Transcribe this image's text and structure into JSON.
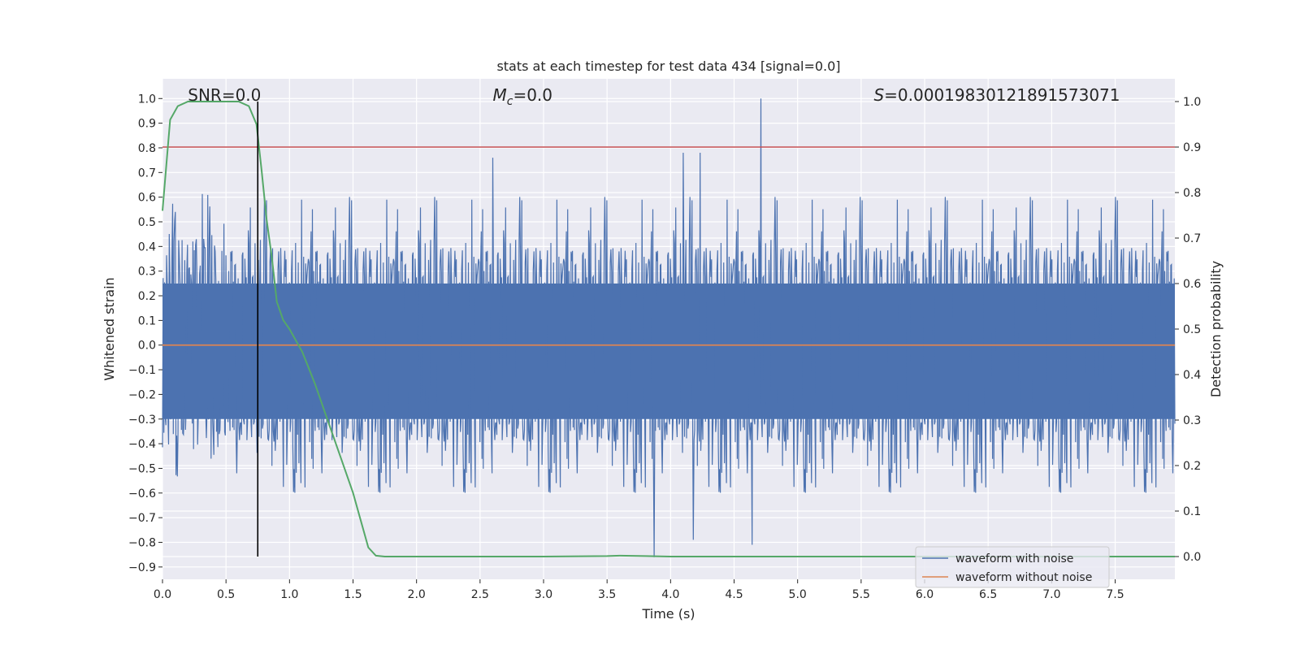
{
  "chart_data": {
    "type": "line",
    "title": "stats at each timestep for test data 434 [signal=0.0]",
    "xlabel": "Time (s)",
    "ylabel_left": "Whitened strain",
    "ylabel_right": "Detection probability",
    "xlim": [
      0.0,
      7.97
    ],
    "ylim_left": [
      -0.95,
      1.08
    ],
    "ylim_right": [
      -0.05,
      1.05
    ],
    "x_ticks": [
      0.0,
      0.5,
      1.0,
      1.5,
      2.0,
      2.5,
      3.0,
      3.5,
      4.0,
      4.5,
      5.0,
      5.5,
      6.0,
      6.5,
      7.0,
      7.5
    ],
    "x_tick_labels": [
      "0.0",
      "0.5",
      "1.0",
      "1.5",
      "2.0",
      "2.5",
      "3.0",
      "3.5",
      "4.0",
      "4.5",
      "5.0",
      "5.5",
      "6.0",
      "6.5",
      "7.0",
      "7.5"
    ],
    "y_left_ticks": [
      1.0,
      0.9,
      0.8,
      0.7,
      0.6,
      0.5,
      0.4,
      0.3,
      0.2,
      0.1,
      0.0,
      -0.1,
      -0.2,
      -0.3,
      -0.4,
      -0.5,
      -0.6,
      -0.7,
      -0.8,
      -0.9
    ],
    "y_left_tick_labels": [
      "1.0",
      "0.9",
      "0.8",
      "0.7",
      "0.6",
      "0.5",
      "0.4",
      "0.3",
      "0.2",
      "0.1",
      "0.0",
      "−0.1",
      "−0.2",
      "−0.3",
      "−0.4",
      "−0.5",
      "−0.6",
      "−0.7",
      "−0.8",
      "−0.9"
    ],
    "y_right_ticks": [
      1.0,
      0.9,
      0.8,
      0.7,
      0.6,
      0.5,
      0.4,
      0.3,
      0.2,
      0.1,
      0.0
    ],
    "y_right_tick_labels": [
      "1.0",
      "0.9",
      "0.8",
      "0.7",
      "0.6",
      "0.5",
      "0.4",
      "0.3",
      "0.2",
      "0.1",
      "0.0"
    ],
    "grid": true,
    "legend": {
      "position": "lower-right",
      "entries": [
        {
          "label": "waveform with noise",
          "color": "#4c72b0"
        },
        {
          "label": "waveform without noise",
          "color": "#dd8452"
        }
      ]
    },
    "series": [
      {
        "name": "waveform with noise",
        "axis": "left",
        "color": "#4c72b0",
        "kind": "noise",
        "typical_range": [
          -0.42,
          0.43
        ],
        "max": 1.0,
        "min": -0.86,
        "peaks": [
          [
            4.71,
            1.0
          ],
          [
            2.6,
            0.76
          ],
          [
            4.1,
            0.78
          ],
          [
            4.23,
            0.78
          ],
          [
            3.87,
            -0.86
          ],
          [
            4.64,
            -0.81
          ],
          [
            4.18,
            -0.79
          ]
        ]
      },
      {
        "name": "waveform without noise",
        "axis": "left",
        "color": "#dd8452",
        "x": [
          0.0,
          7.97
        ],
        "y": [
          0.0,
          0.0
        ]
      },
      {
        "axis": "right",
        "color": "#55a868",
        "x": [
          0.0,
          0.06,
          0.12,
          0.2,
          0.3,
          0.45,
          0.6,
          0.68,
          0.74,
          0.78,
          0.82,
          0.86,
          0.9,
          0.95,
          1.0,
          1.1,
          1.2,
          1.3,
          1.4,
          1.5,
          1.56,
          1.62,
          1.68,
          1.75,
          2.0,
          3.0,
          3.5,
          3.6,
          3.8,
          4.0,
          5.0,
          6.0,
          7.0,
          7.97
        ],
        "y": [
          0.76,
          0.96,
          0.99,
          1.0,
          1.0,
          1.0,
          1.0,
          0.99,
          0.95,
          0.85,
          0.74,
          0.66,
          0.56,
          0.52,
          0.5,
          0.45,
          0.38,
          0.3,
          0.22,
          0.14,
          0.08,
          0.02,
          0.002,
          0.0,
          0.0,
          0.0,
          0.001,
          0.002,
          0.001,
          0.0,
          0.0,
          0.0,
          0.0,
          0.0
        ]
      },
      {
        "axis": "right",
        "color": "#c44e52",
        "x": [
          0.0,
          7.97
        ],
        "y": [
          0.9,
          0.9
        ]
      }
    ],
    "vline": {
      "x": 0.75,
      "color": "#000000"
    },
    "annotations": [
      {
        "text": "SNR=0.0",
        "x": 0.2
      },
      {
        "text": "M_c=0.0",
        "x": 2.6
      },
      {
        "text": "S=0.0001983012189157307​1",
        "x": 5.6
      }
    ]
  },
  "annotation_display": {
    "snr": "SNR=0.0",
    "mc_symbol": "M",
    "mc_sub": "c",
    "mc_value": "=0.0",
    "s_symbol": "S",
    "s_value": "=0.00019830121891573071"
  }
}
